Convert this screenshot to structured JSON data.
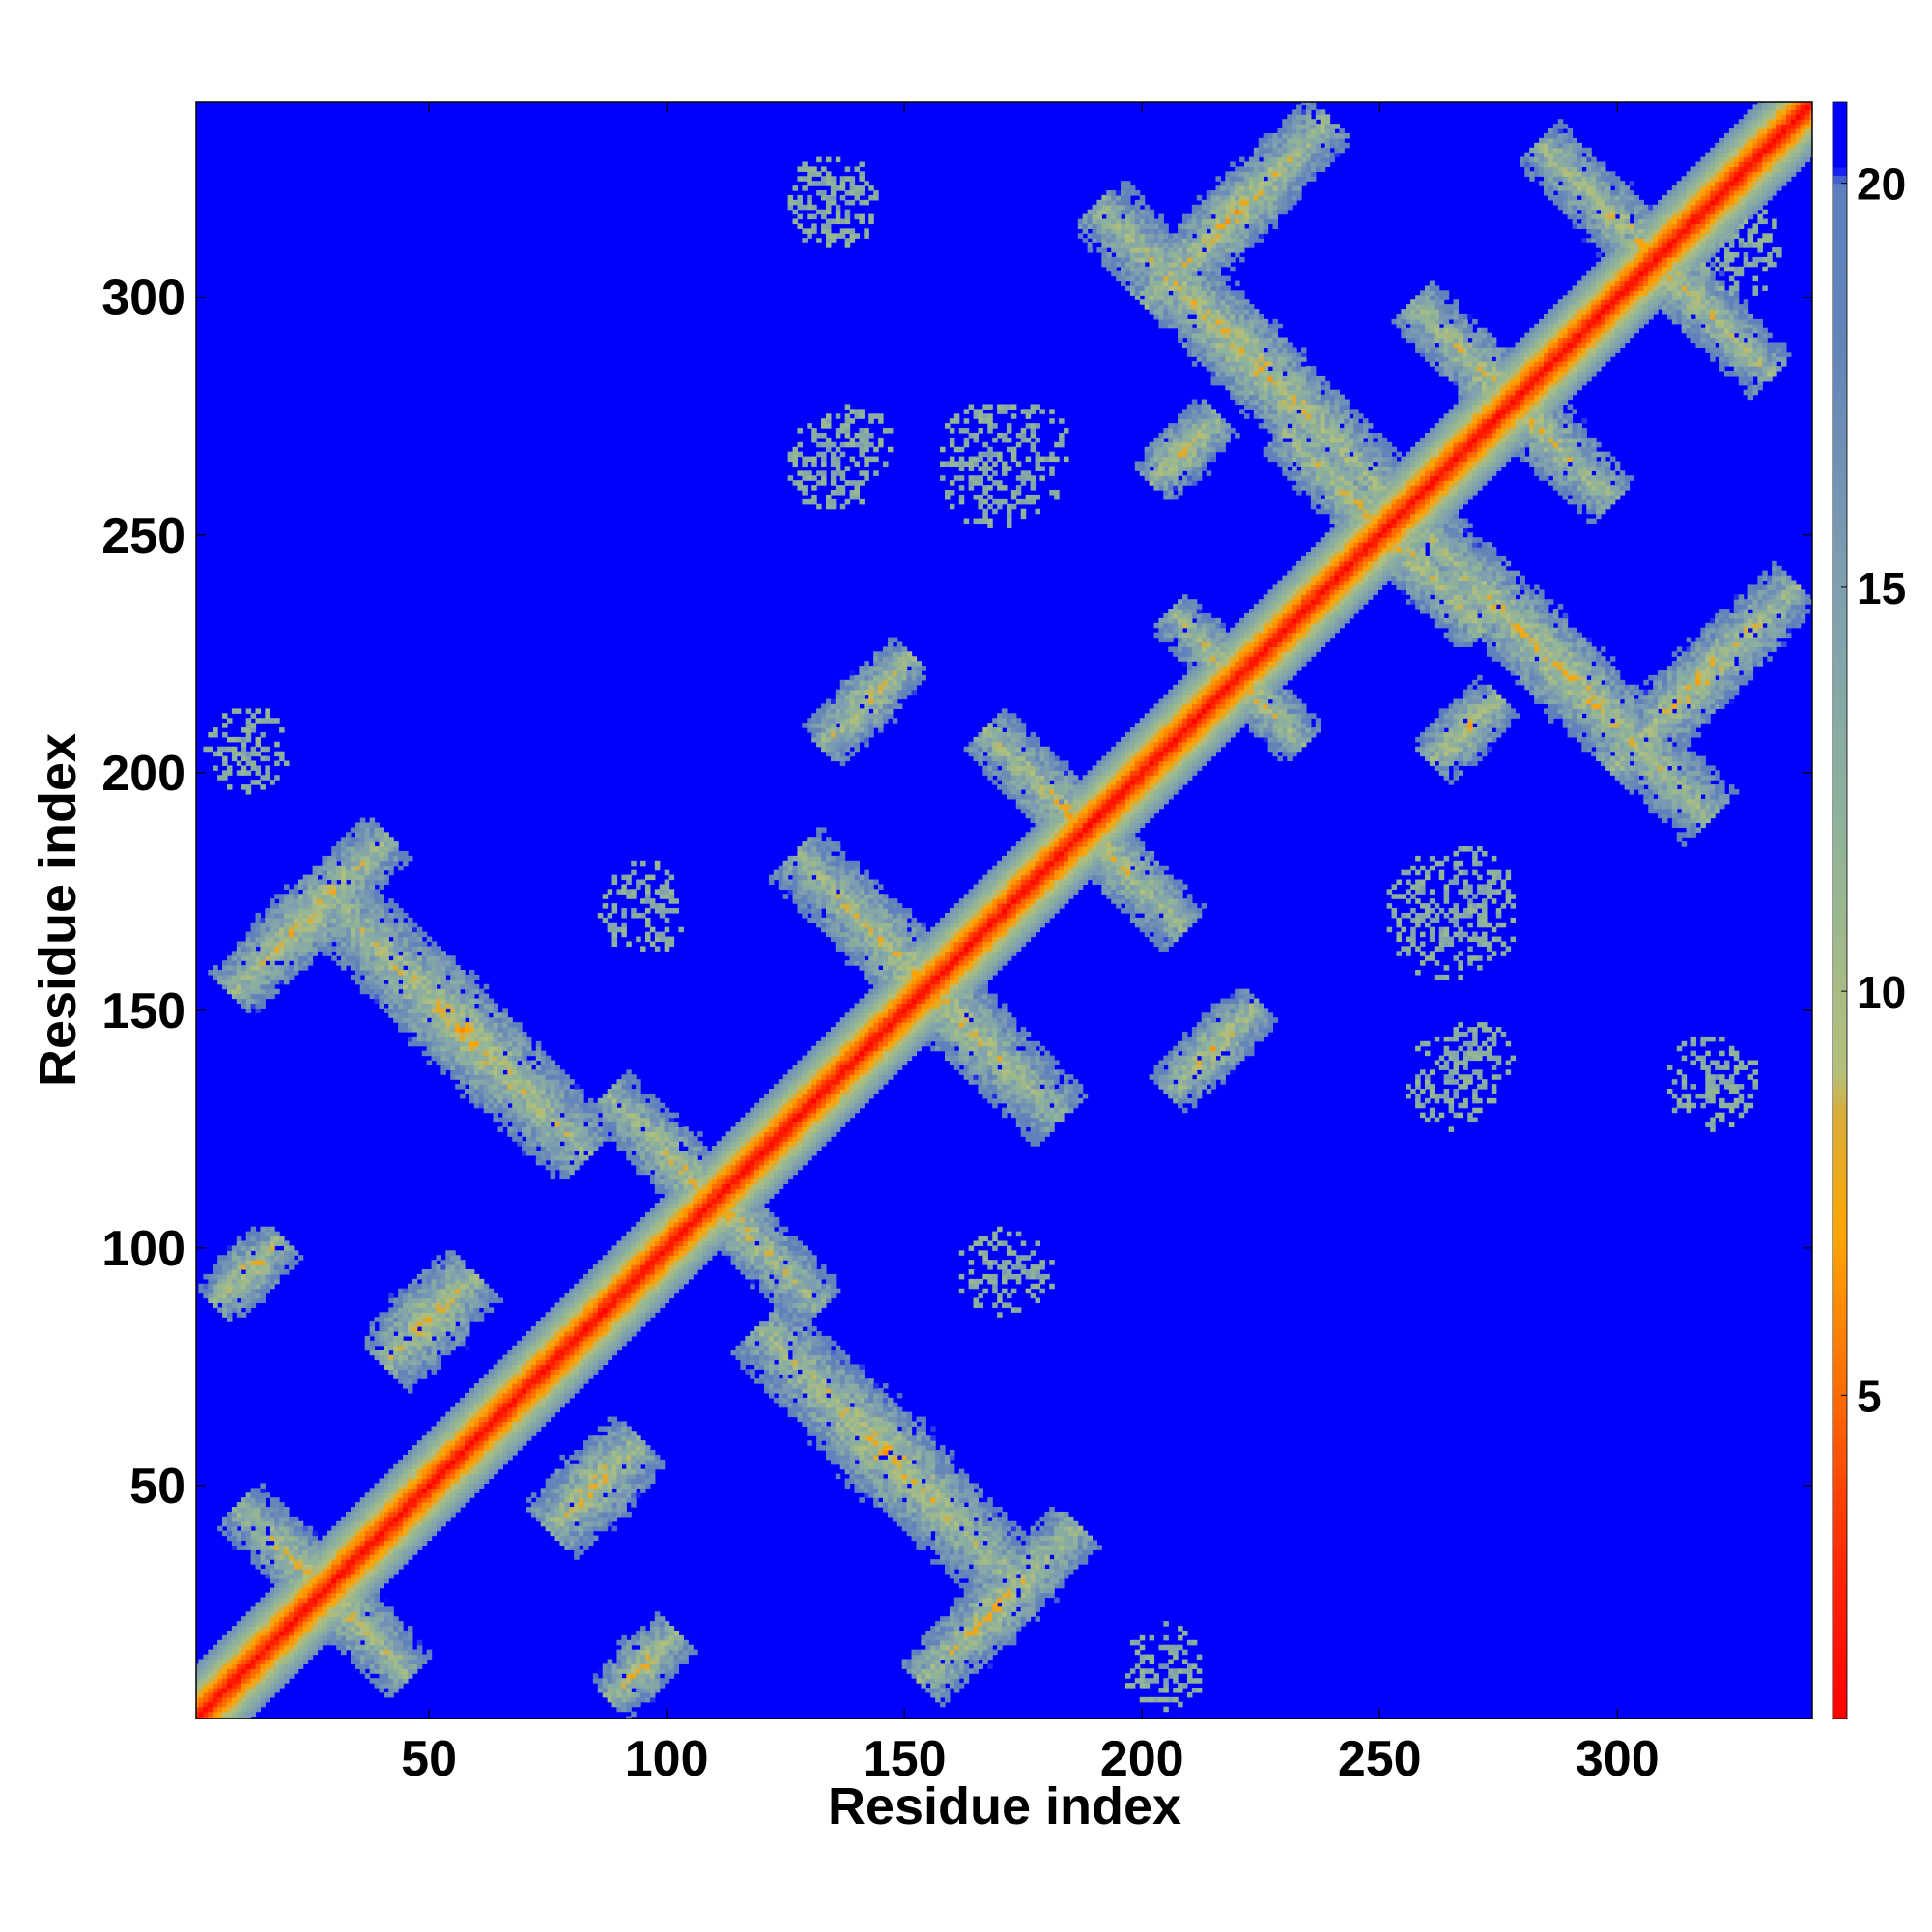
{
  "chart_data": {
    "type": "heatmap",
    "xlabel": "Residue index",
    "ylabel": "Residue index",
    "xlim": [
      1,
      341
    ],
    "ylim": [
      1,
      341
    ],
    "x_ticks": [
      50,
      100,
      150,
      200,
      250,
      300
    ],
    "y_ticks": [
      50,
      100,
      150,
      200,
      250,
      300
    ],
    "colorbar": {
      "range": [
        1,
        21
      ],
      "ticks": [
        5,
        10,
        15,
        20
      ],
      "stops": [
        {
          "v": 1,
          "color": "#ff0000"
        },
        {
          "v": 3,
          "color": "#ff2a00"
        },
        {
          "v": 5,
          "color": "#ff6a00"
        },
        {
          "v": 7,
          "color": "#ffa500"
        },
        {
          "v": 8.5,
          "color": "#d8ad3a"
        },
        {
          "v": 9,
          "color": "#b4c07a"
        },
        {
          "v": 12,
          "color": "#8fb39a"
        },
        {
          "v": 15,
          "color": "#7f9fb0"
        },
        {
          "v": 18,
          "color": "#6384b8"
        },
        {
          "v": 20,
          "color": "#5c7fbf"
        },
        {
          "v": 20.2,
          "color": "#0000ff"
        },
        {
          "v": 21,
          "color": "#0000ff"
        }
      ]
    },
    "background_value": 21,
    "diagonal": {
      "center_value": 1,
      "half_width_residues": 11
    },
    "contact_bands": [
      {
        "orientation": "anti",
        "center": [
          28,
          28
        ],
        "half_length": 26,
        "half_width": 7
      },
      {
        "orientation": "anti",
        "center": [
          57,
          146
        ],
        "half_length": 38,
        "half_width": 9
      },
      {
        "orientation": "anti",
        "center": [
          146,
          57
        ],
        "half_length": 38,
        "half_width": 9
      },
      {
        "orientation": "anti",
        "center": [
          110,
          110
        ],
        "half_length": 32,
        "half_width": 7
      },
      {
        "orientation": "anti",
        "center": [
          155,
          155
        ],
        "half_length": 40,
        "half_width": 8
      },
      {
        "orientation": "anti",
        "center": [
          188,
          188
        ],
        "half_length": 30,
        "half_width": 7
      },
      {
        "orientation": "anti",
        "center": [
          220,
          220
        ],
        "half_length": 20,
        "half_width": 6
      },
      {
        "orientation": "anti",
        "center": [
          251,
          251
        ],
        "half_length": 30,
        "half_width": 7
      },
      {
        "orientation": "anti",
        "center": [
          278,
          278
        ],
        "half_length": 30,
        "half_width": 7
      },
      {
        "orientation": "anti",
        "center": [
          308,
          308
        ],
        "half_length": 35,
        "half_width": 7
      },
      {
        "orientation": "anti",
        "center": [
          288,
          222
        ],
        "half_length": 45,
        "half_width": 8
      },
      {
        "orientation": "anti",
        "center": [
          222,
          288
        ],
        "half_length": 45,
        "half_width": 8
      },
      {
        "orientation": "parallel",
        "center": [
          170,
          25
        ],
        "half_length": 24,
        "half_width": 7
      },
      {
        "orientation": "parallel",
        "center": [
          25,
          170
        ],
        "half_length": 24,
        "half_width": 7
      },
      {
        "orientation": "parallel",
        "center": [
          142,
          215
        ],
        "half_length": 14,
        "half_width": 6
      },
      {
        "orientation": "parallel",
        "center": [
          215,
          142
        ],
        "half_length": 14,
        "half_width": 6
      },
      {
        "orientation": "parallel",
        "center": [
          220,
          318
        ],
        "half_length": 28,
        "half_width": 7
      },
      {
        "orientation": "parallel",
        "center": [
          318,
          220
        ],
        "half_length": 28,
        "half_width": 7
      },
      {
        "orientation": "parallel",
        "center": [
          95,
          12
        ],
        "half_length": 10,
        "half_width": 6
      },
      {
        "orientation": "parallel",
        "center": [
          12,
          95
        ],
        "half_length": 10,
        "half_width": 6
      },
      {
        "orientation": "parallel",
        "center": [
          85,
          50
        ],
        "half_length": 14,
        "half_width": 8
      },
      {
        "orientation": "parallel",
        "center": [
          50,
          85
        ],
        "half_length": 14,
        "half_width": 8
      },
      {
        "orientation": "parallel",
        "center": [
          268,
          209
        ],
        "half_length": 10,
        "half_width": 6
      },
      {
        "orientation": "parallel",
        "center": [
          209,
          268
        ],
        "half_length": 10,
        "half_width": 6
      }
    ],
    "scatter_patches": [
      {
        "center": [
          135,
          265
        ],
        "radius": 10
      },
      {
        "center": [
          265,
          135
        ],
        "radius": 10
      },
      {
        "center": [
          175,
          268
        ],
        "radius": 10
      },
      {
        "center": [
          268,
          175
        ],
        "radius": 10
      },
      {
        "center": [
          265,
          170
        ],
        "radius": 14
      },
      {
        "center": [
          170,
          265
        ],
        "radius": 14
      },
      {
        "center": [
          270,
          140
        ],
        "radius": 8
      },
      {
        "center": [
          140,
          270
        ],
        "radius": 8
      },
      {
        "center": [
          95,
          170
        ],
        "radius": 9
      },
      {
        "center": [
          170,
          95
        ],
        "radius": 9
      },
      {
        "center": [
          175,
          95
        ],
        "radius": 7
      },
      {
        "center": [
          95,
          175
        ],
        "radius": 7
      },
      {
        "center": [
          320,
          135
        ],
        "radius": 10
      },
      {
        "center": [
          135,
          320
        ],
        "radius": 10
      },
      {
        "center": [
          325,
          310
        ],
        "radius": 10
      },
      {
        "center": [
          205,
          12
        ],
        "radius": 9
      },
      {
        "center": [
          12,
          205
        ],
        "radius": 9
      }
    ]
  }
}
